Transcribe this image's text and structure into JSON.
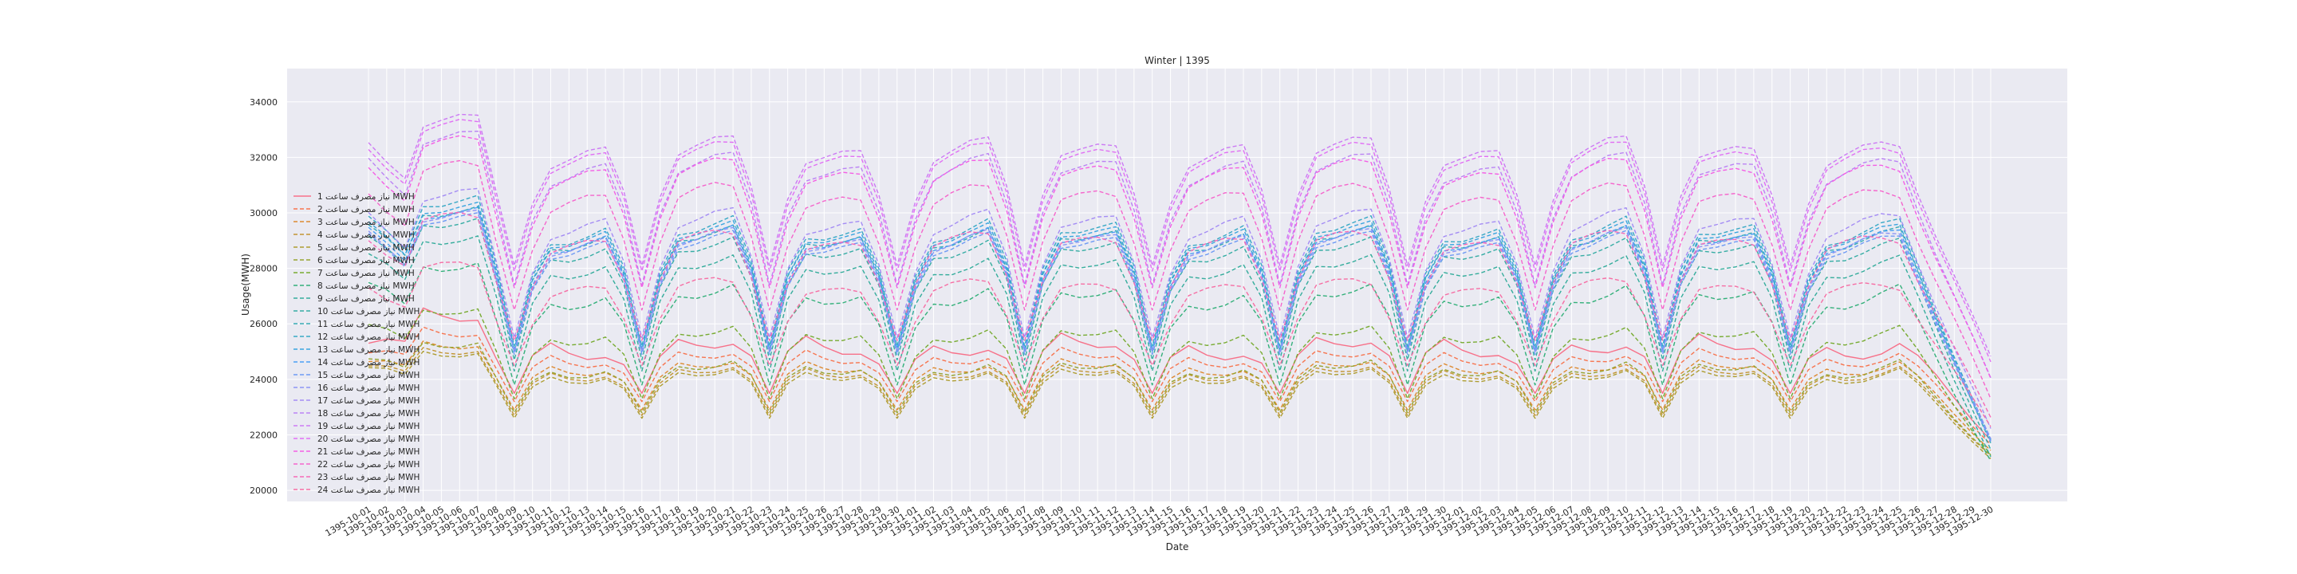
{
  "chart_data": {
    "type": "line",
    "title": "Winter | 1395",
    "xlabel": "Date",
    "ylabel": "Usage(MWH)",
    "ylim": [
      19600,
      35200
    ],
    "yticks": [
      20000,
      22000,
      24000,
      26000,
      28000,
      30000,
      32000,
      34000
    ],
    "grid": true,
    "legend_position": "left",
    "x": [
      "1395-10-01",
      "1395-10-02",
      "1395-10-03",
      "1395-10-04",
      "1395-10-05",
      "1395-10-06",
      "1395-10-07",
      "1395-10-08",
      "1395-10-09",
      "1395-10-10",
      "1395-10-11",
      "1395-10-12",
      "1395-10-13",
      "1395-10-14",
      "1395-10-15",
      "1395-10-16",
      "1395-10-17",
      "1395-10-18",
      "1395-10-19",
      "1395-10-20",
      "1395-10-21",
      "1395-10-22",
      "1395-10-23",
      "1395-10-24",
      "1395-10-25",
      "1395-10-26",
      "1395-10-27",
      "1395-10-28",
      "1395-10-29",
      "1395-10-30",
      "1395-11-01",
      "1395-11-02",
      "1395-11-03",
      "1395-11-04",
      "1395-11-05",
      "1395-11-06",
      "1395-11-07",
      "1395-11-08",
      "1395-11-09",
      "1395-11-10",
      "1395-11-11",
      "1395-11-12",
      "1395-11-13",
      "1395-11-14",
      "1395-11-15",
      "1395-11-16",
      "1395-11-17",
      "1395-11-18",
      "1395-11-19",
      "1395-11-20",
      "1395-11-21",
      "1395-11-22",
      "1395-11-23",
      "1395-11-24",
      "1395-11-25",
      "1395-11-26",
      "1395-11-27",
      "1395-11-28",
      "1395-11-29",
      "1395-11-30",
      "1395-12-01",
      "1395-12-02",
      "1395-12-03",
      "1395-12-04",
      "1395-12-05",
      "1395-12-06",
      "1395-12-07",
      "1395-12-08",
      "1395-12-09",
      "1395-12-10",
      "1395-12-11",
      "1395-12-12",
      "1395-12-13",
      "1395-12-14",
      "1395-12-15",
      "1395-12-16",
      "1395-12-17",
      "1395-12-18",
      "1395-12-19",
      "1395-12-20",
      "1395-12-21",
      "1395-12-22",
      "1395-12-23",
      "1395-12-24",
      "1395-12-25",
      "1395-12-26",
      "1395-12-27",
      "1395-12-28",
      "1395-12-29",
      "1395-12-30"
    ],
    "series": [
      {
        "name": "نیاز مصرف ساعت 1 MWH",
        "color": "#f77189",
        "peak": 25800,
        "trough": 24800,
        "valley": 23500,
        "phase": 0.0
      },
      {
        "name": "نیاز مصرف ساعت 2 MWH",
        "color": "#f7754f",
        "peak": 25300,
        "trough": 24500,
        "valley": 23200,
        "phase": 0.05
      },
      {
        "name": "نیاز مصرف ساعت 3 MWH",
        "color": "#dd8a31",
        "peak": 24900,
        "trough": 24200,
        "valley": 22900,
        "phase": 0.1
      },
      {
        "name": "نیاز مصرف ساعت 4 MWH",
        "color": "#c39532",
        "peak": 24700,
        "trough": 24000,
        "valley": 22700,
        "phase": 0.15
      },
      {
        "name": "نیاز مصرف ساعت 5 MWH",
        "color": "#ae9d31",
        "peak": 24600,
        "trough": 23900,
        "valley": 22600,
        "phase": 0.2
      },
      {
        "name": "نیاز مصرف ساعت 6 MWH",
        "color": "#97a431",
        "peak": 24900,
        "trough": 24100,
        "valley": 22800,
        "phase": 0.25
      },
      {
        "name": "نیاز مصرف ساعت 7 MWH",
        "color": "#77ab31",
        "peak": 26100,
        "trough": 25300,
        "valley": 23300,
        "phase": 0.3
      },
      {
        "name": "نیاز مصرف ساعت 8 MWH",
        "color": "#33b07a",
        "peak": 27600,
        "trough": 26600,
        "valley": 23800,
        "phase": 0.35
      },
      {
        "name": "نیاز مصرف ساعت 9 MWH",
        "color": "#35ad9c",
        "peak": 28600,
        "trough": 27700,
        "valley": 24300,
        "phase": 0.4
      },
      {
        "name": "نیاز مصرف ساعت 10 MWH",
        "color": "#36ada4",
        "peak": 29200,
        "trough": 28300,
        "valley": 24700,
        "phase": 0.45
      },
      {
        "name": "نیاز مصرف ساعت 11 MWH",
        "color": "#37abb4",
        "peak": 29600,
        "trough": 28700,
        "valley": 25000,
        "phase": 0.5
      },
      {
        "name": "نیاز مصرف ساعت 12 MWH",
        "color": "#38a9c5",
        "peak": 29900,
        "trough": 28900,
        "valley": 25200,
        "phase": 0.55
      },
      {
        "name": "نیاز مصرف ساعت 13 MWH",
        "color": "#3aa5df",
        "peak": 29700,
        "trough": 28800,
        "valley": 25100,
        "phase": 0.6
      },
      {
        "name": "نیاز مصرف ساعت 14 MWH",
        "color": "#4b9ff4",
        "peak": 29500,
        "trough": 28600,
        "valley": 25000,
        "phase": 0.65
      },
      {
        "name": "نیاز مصرف ساعت 15 MWH",
        "color": "#6e9af4",
        "peak": 29300,
        "trough": 28400,
        "valley": 24900,
        "phase": 0.7
      },
      {
        "name": "نیاز مصرف ساعت 16 MWH",
        "color": "#8d95f4",
        "peak": 29400,
        "trough": 28500,
        "valley": 25000,
        "phase": 0.75
      },
      {
        "name": "نیاز مصرف ساعت 17 MWH",
        "color": "#a48cf4",
        "peak": 30100,
        "trough": 29100,
        "valley": 25500,
        "phase": 0.8
      },
      {
        "name": "نیاز مصرف ساعت 18 MWH",
        "color": "#bb83f4",
        "peak": 32100,
        "trough": 31000,
        "valley": 27400,
        "phase": 0.85
      },
      {
        "name": "نیاز مصرف ساعت 19 MWH",
        "color": "#cc7af4",
        "peak": 32700,
        "trough": 31600,
        "valley": 28100,
        "phase": 0.9
      },
      {
        "name": "نیاز مصرف ساعت 20 MWH",
        "color": "#e16ff4",
        "peak": 32500,
        "trough": 31400,
        "valley": 27900,
        "phase": 0.95
      },
      {
        "name": "نیاز مصرف ساعت 21 MWH",
        "color": "#f45fe5",
        "peak": 31900,
        "trough": 30800,
        "valley": 27300,
        "phase": 1.0
      },
      {
        "name": "نیاز مصرف ساعت 22 MWH",
        "color": "#f565cc",
        "peak": 31000,
        "trough": 29900,
        "valley": 26500,
        "phase": 1.05
      },
      {
        "name": "نیاز مصرف ساعت 23 MWH",
        "color": "#f66bb7",
        "peak": 29300,
        "trough": 28400,
        "valley": 25400,
        "phase": 1.1
      },
      {
        "name": "نیاز مصرف ساعت 24 MWH",
        "color": "#f66ea4",
        "peak": 27600,
        "trough": 26800,
        "valley": 24500,
        "phase": 1.15
      }
    ]
  }
}
